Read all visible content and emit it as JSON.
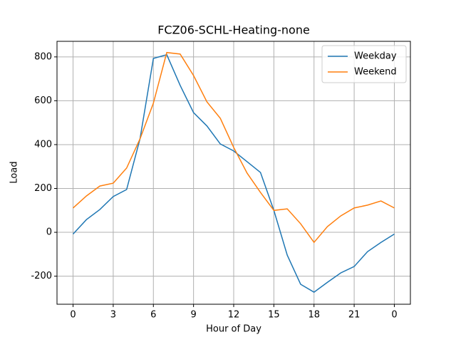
{
  "chart_data": {
    "type": "line",
    "title": "FCZ06-SCHL-Heating-none",
    "x_label": "Hour of Day",
    "y_label": "Load",
    "x": [
      0,
      1,
      2,
      3,
      4,
      5,
      6,
      7,
      8,
      9,
      10,
      11,
      12,
      13,
      14,
      15,
      16,
      17,
      18,
      19,
      20,
      21,
      22,
      23,
      24
    ],
    "series": [
      {
        "name": "Weekday",
        "color": "#1f77b4",
        "values": [
          -8,
          58,
          104,
          163,
          195,
          426,
          793,
          810,
          670,
          546,
          485,
          403,
          371,
          322,
          273,
          100,
          -104,
          -237,
          -273,
          -228,
          -185,
          -156,
          -88,
          -46,
          -8
        ]
      },
      {
        "name": "Weekend",
        "color": "#ff7f0e",
        "values": [
          111,
          166,
          211,
          224,
          293,
          426,
          589,
          820,
          813,
          715,
          595,
          520,
          387,
          270,
          182,
          100,
          107,
          39,
          -46,
          26,
          75,
          111,
          124,
          143,
          111
        ]
      }
    ],
    "xlim": [
      -1.2,
      25.2
    ],
    "ylim": [
      -328,
      871
    ],
    "xticks": [
      0,
      3,
      6,
      9,
      12,
      15,
      18,
      21,
      {
        "value": 24,
        "label": "0"
      }
    ],
    "yticks": [
      -200,
      0,
      200,
      400,
      600,
      800
    ],
    "grid": true,
    "legend": "upper right"
  }
}
